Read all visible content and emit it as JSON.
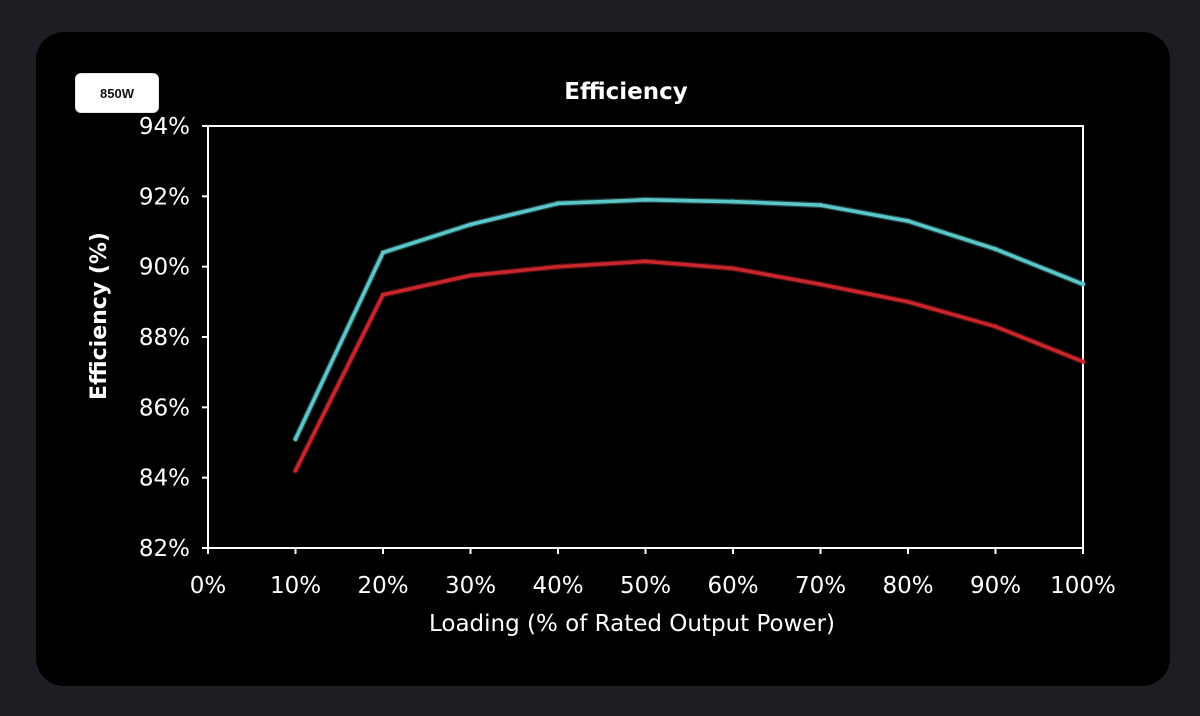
{
  "badge": {
    "label": "850W"
  },
  "chart_data": {
    "type": "line",
    "title": "Efficiency",
    "xlabel": "Loading (% of Rated Output Power)",
    "ylabel": "Efficiency (%)",
    "x": [
      10,
      20,
      30,
      40,
      50,
      60,
      70,
      80,
      90,
      100
    ],
    "xlim": [
      0,
      100
    ],
    "ylim": [
      82,
      94
    ],
    "xticks": [
      0,
      10,
      20,
      30,
      40,
      50,
      60,
      70,
      80,
      90,
      100
    ],
    "xtick_labels": [
      "0%",
      "10%",
      "20%",
      "30%",
      "40%",
      "50%",
      "60%",
      "70%",
      "80%",
      "90%",
      "100%"
    ],
    "yticks": [
      82,
      84,
      86,
      88,
      90,
      92,
      94
    ],
    "ytick_labels": [
      "82%",
      "84%",
      "86%",
      "88%",
      "90%",
      "92%",
      "94%"
    ],
    "series": [
      {
        "color": "#5cc7c9",
        "values": [
          85.1,
          90.4,
          91.2,
          91.8,
          91.9,
          91.85,
          91.75,
          91.3,
          90.5,
          89.5
        ]
      },
      {
        "color": "#c9262b",
        "values": [
          84.2,
          89.2,
          89.75,
          90.0,
          90.15,
          89.95,
          89.5,
          89.0,
          88.3,
          87.3
        ]
      }
    ],
    "grid": false,
    "legend": false
  }
}
